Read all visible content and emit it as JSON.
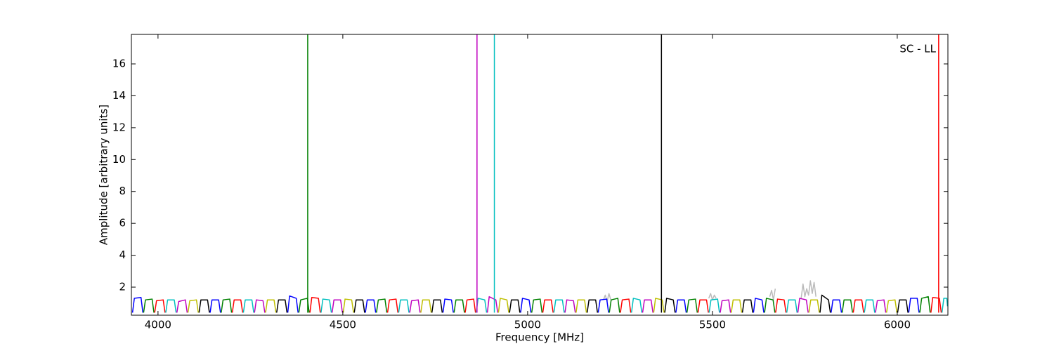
{
  "chart_data": {
    "type": "line",
    "xlabel": "Frequency [MHz]",
    "ylabel": "Amplitude [arbitrary units]",
    "annotation": "SC - LL",
    "xlim": [
      3928,
      6137
    ],
    "ylim": [
      0.24,
      17.85
    ],
    "xticks": [
      4000,
      4500,
      5000,
      5500,
      6000
    ],
    "yticks": [
      2,
      4,
      6,
      8,
      10,
      12,
      14,
      16
    ],
    "series": [
      {
        "color": "#bbbbbb",
        "x": [
          5205,
          5210,
          5215,
          5220,
          5225,
          null,
          5490,
          5495,
          5500,
          5505,
          5510,
          null,
          5655,
          5660,
          5665,
          5670,
          null,
          5740,
          5745,
          5750,
          5755,
          5760,
          5765,
          5770,
          5775,
          5780
        ],
        "values": [
          1.2,
          1.5,
          1.1,
          1.6,
          1.2,
          null,
          1.3,
          1.6,
          1.2,
          1.5,
          1.3,
          null,
          1.4,
          1.8,
          1.2,
          1.9,
          null,
          1.3,
          2.2,
          1.4,
          1.9,
          1.5,
          2.4,
          1.6,
          2.3,
          1.4
        ]
      },
      {
        "color": "#0000ff",
        "x": [
          3931,
          3936,
          3954,
          3959,
          null,
          4141,
          4146,
          4164,
          4169,
          null,
          4351,
          4356,
          4374,
          4379,
          null,
          4561,
          4566,
          4584,
          4589,
          null,
          4771,
          4776,
          4794,
          4799,
          null,
          4981,
          4986,
          5004,
          5009,
          null,
          5191,
          5196,
          5214,
          5219,
          null,
          5401,
          5406,
          5424,
          5429,
          null,
          5611,
          5616,
          5634,
          5639,
          null,
          5821,
          5826,
          5844,
          5849,
          null,
          6031,
          6036,
          6054,
          6059
        ],
        "values": [
          0.4,
          1.3,
          1.35,
          0.4,
          null,
          0.4,
          1.2,
          1.2,
          0.4,
          null,
          0.4,
          1.45,
          1.3,
          0.4,
          null,
          0.4,
          1.2,
          1.2,
          0.4,
          null,
          0.4,
          1.25,
          1.2,
          0.4,
          null,
          0.4,
          1.3,
          1.2,
          0.4,
          null,
          0.4,
          1.2,
          1.25,
          0.4,
          null,
          0.4,
          1.2,
          1.2,
          0.4,
          null,
          0.4,
          1.3,
          1.2,
          0.4,
          null,
          0.4,
          1.2,
          1.2,
          0.4,
          null,
          0.4,
          1.3,
          1.3,
          0.4
        ]
      },
      {
        "color": "#008000",
        "x": [
          3961,
          3966,
          3984,
          3989,
          null,
          4171,
          4176,
          4194,
          4199,
          null,
          4381,
          4386,
          4404,
          4409,
          null,
          4591,
          4596,
          4614,
          4619,
          null,
          4801,
          4806,
          4824,
          4829,
          null,
          5011,
          5016,
          5034,
          5039,
          null,
          5221,
          5226,
          5244,
          5249,
          null,
          5431,
          5436,
          5454,
          5459,
          null,
          5641,
          5646,
          5664,
          5669,
          null,
          5851,
          5856,
          5874,
          5879,
          null,
          6061,
          6066,
          6084,
          6089
        ],
        "values": [
          0.4,
          1.2,
          1.25,
          0.4,
          null,
          0.4,
          1.2,
          1.25,
          0.4,
          null,
          0.4,
          1.2,
          1.3,
          0.4,
          null,
          0.4,
          1.2,
          1.25,
          0.4,
          null,
          0.4,
          1.2,
          1.2,
          0.4,
          null,
          0.4,
          1.2,
          1.25,
          0.4,
          null,
          0.4,
          1.2,
          1.3,
          0.4,
          null,
          0.4,
          1.2,
          1.25,
          0.4,
          null,
          0.4,
          1.3,
          1.2,
          0.4,
          null,
          0.4,
          1.2,
          1.2,
          0.4,
          null,
          0.4,
          1.3,
          1.4,
          0.4
        ]
      },
      {
        "color": "#ff0000",
        "x": [
          3991,
          3996,
          4014,
          4019,
          null,
          4201,
          4206,
          4224,
          4229,
          null,
          4411,
          4416,
          4434,
          4439,
          null,
          4621,
          4626,
          4644,
          4649,
          null,
          4831,
          4836,
          4854,
          4859,
          null,
          5041,
          5046,
          5064,
          5069,
          null,
          5251,
          5256,
          5274,
          5279,
          null,
          5461,
          5466,
          5484,
          5489,
          null,
          5671,
          5676,
          5694,
          5699,
          null,
          5881,
          5886,
          5904,
          5909,
          null,
          6091,
          6096,
          6114,
          6119
        ],
        "values": [
          0.4,
          1.15,
          1.2,
          0.4,
          null,
          0.4,
          1.2,
          1.2,
          0.4,
          null,
          0.4,
          1.35,
          1.3,
          0.4,
          null,
          0.4,
          1.2,
          1.25,
          0.4,
          null,
          0.4,
          1.2,
          1.25,
          0.4,
          null,
          0.4,
          1.2,
          1.2,
          0.4,
          null,
          0.4,
          1.2,
          1.25,
          0.4,
          null,
          0.4,
          1.2,
          1.2,
          0.4,
          null,
          0.4,
          1.25,
          1.2,
          0.4,
          null,
          0.4,
          1.2,
          1.2,
          0.4,
          null,
          0.4,
          1.35,
          1.3,
          0.4
        ]
      },
      {
        "color": "#00bfbf",
        "x": [
          4021,
          4026,
          4044,
          4049,
          null,
          4231,
          4236,
          4254,
          4259,
          null,
          4441,
          4446,
          4464,
          4469,
          null,
          4651,
          4656,
          4674,
          4679,
          null,
          4861,
          4866,
          4884,
          4889,
          null,
          5071,
          5076,
          5094,
          5099,
          null,
          5281,
          5286,
          5304,
          5309,
          null,
          5491,
          5496,
          5514,
          5519,
          null,
          5701,
          5706,
          5724,
          5729,
          null,
          5911,
          5916,
          5934,
          5939,
          null,
          6121,
          6126,
          6134,
          6136
        ],
        "values": [
          0.4,
          1.2,
          1.2,
          0.4,
          null,
          0.4,
          1.2,
          1.2,
          0.4,
          null,
          0.4,
          1.25,
          1.2,
          0.4,
          null,
          0.4,
          1.2,
          1.2,
          0.4,
          null,
          0.4,
          1.3,
          1.2,
          0.4,
          null,
          0.4,
          1.2,
          1.2,
          0.4,
          null,
          0.4,
          1.3,
          1.2,
          0.4,
          null,
          0.4,
          1.2,
          1.25,
          0.4,
          null,
          0.4,
          1.2,
          1.2,
          0.4,
          null,
          0.4,
          1.2,
          1.2,
          0.4,
          null,
          0.4,
          1.3,
          1.3,
          0.8
        ]
      },
      {
        "color": "#bf00bf",
        "x": [
          4051,
          4056,
          4074,
          4079,
          null,
          4261,
          4266,
          4284,
          4289,
          null,
          4471,
          4476,
          4494,
          4499,
          null,
          4681,
          4686,
          4704,
          4709,
          null,
          4891,
          4896,
          4914,
          4919,
          null,
          5101,
          5106,
          5124,
          5129,
          null,
          5311,
          5316,
          5334,
          5339,
          null,
          5521,
          5526,
          5544,
          5549,
          null,
          5731,
          5736,
          5754,
          5759,
          null,
          5941,
          5946,
          5964,
          5969
        ],
        "values": [
          0.4,
          1.1,
          1.2,
          0.4,
          null,
          0.4,
          1.2,
          1.15,
          0.4,
          null,
          0.4,
          1.2,
          1.2,
          0.4,
          null,
          0.4,
          1.15,
          1.2,
          0.4,
          null,
          0.4,
          1.4,
          1.2,
          0.4,
          null,
          0.4,
          1.2,
          1.15,
          0.4,
          null,
          0.4,
          1.2,
          1.2,
          0.4,
          null,
          0.4,
          1.15,
          1.2,
          0.4,
          null,
          0.4,
          1.3,
          1.2,
          0.4,
          null,
          0.4,
          1.15,
          1.2,
          0.4
        ]
      },
      {
        "color": "#bfbf00",
        "x": [
          4081,
          4086,
          4104,
          4109,
          null,
          4291,
          4296,
          4314,
          4319,
          null,
          4501,
          4506,
          4524,
          4529,
          null,
          4711,
          4716,
          4734,
          4739,
          null,
          4921,
          4926,
          4944,
          4949,
          null,
          5131,
          5136,
          5154,
          5159,
          null,
          5341,
          5346,
          5364,
          5369,
          null,
          5551,
          5556,
          5574,
          5579,
          null,
          5761,
          5766,
          5784,
          5789,
          null,
          5971,
          5976,
          5994,
          5999
        ],
        "values": [
          0.4,
          1.15,
          1.2,
          0.4,
          null,
          0.4,
          1.2,
          1.2,
          0.4,
          null,
          0.4,
          1.25,
          1.2,
          0.4,
          null,
          0.4,
          1.2,
          1.2,
          0.4,
          null,
          0.4,
          1.3,
          1.2,
          0.4,
          null,
          0.4,
          1.2,
          1.2,
          0.4,
          null,
          0.4,
          1.3,
          1.2,
          0.4,
          null,
          0.4,
          1.2,
          1.2,
          0.4,
          null,
          0.4,
          1.2,
          1.2,
          0.4,
          null,
          0.4,
          1.15,
          1.2,
          0.4
        ]
      },
      {
        "color": "#000000",
        "x": [
          4111,
          4116,
          4134,
          4139,
          null,
          4321,
          4326,
          4344,
          4349,
          null,
          4531,
          4536,
          4554,
          4559,
          null,
          4741,
          4746,
          4764,
          4769,
          null,
          4951,
          4956,
          4974,
          4979,
          null,
          5161,
          5166,
          5184,
          5189,
          null,
          5371,
          5376,
          5394,
          5399,
          null,
          5581,
          5586,
          5604,
          5609,
          null,
          5791,
          5796,
          5814,
          5819,
          null,
          6001,
          6006,
          6024,
          6029
        ],
        "values": [
          0.4,
          1.2,
          1.2,
          0.4,
          null,
          0.4,
          1.2,
          1.2,
          0.4,
          null,
          0.4,
          1.2,
          1.2,
          0.4,
          null,
          0.4,
          1.2,
          1.2,
          0.4,
          null,
          0.4,
          1.2,
          1.2,
          0.4,
          null,
          0.4,
          1.2,
          1.2,
          0.4,
          null,
          0.4,
          1.3,
          1.2,
          0.4,
          null,
          0.4,
          1.2,
          1.2,
          0.4,
          null,
          0.4,
          1.5,
          1.2,
          0.4,
          null,
          0.4,
          1.2,
          1.2,
          0.4
        ]
      },
      {
        "color": "#008000",
        "x": [
          4405,
          4405
        ],
        "values": [
          0.4,
          17.85
        ]
      },
      {
        "color": "#bf00bf",
        "x": [
          4863,
          4863
        ],
        "values": [
          0.4,
          17.85
        ]
      },
      {
        "color": "#00bfbf",
        "x": [
          4910,
          4910
        ],
        "values": [
          0.4,
          17.85
        ]
      },
      {
        "color": "#000000",
        "x": [
          5362,
          5362
        ],
        "values": [
          0.4,
          17.85
        ]
      },
      {
        "color": "#ff0000",
        "x": [
          6112,
          6112
        ],
        "values": [
          0.4,
          17.85
        ]
      }
    ]
  }
}
